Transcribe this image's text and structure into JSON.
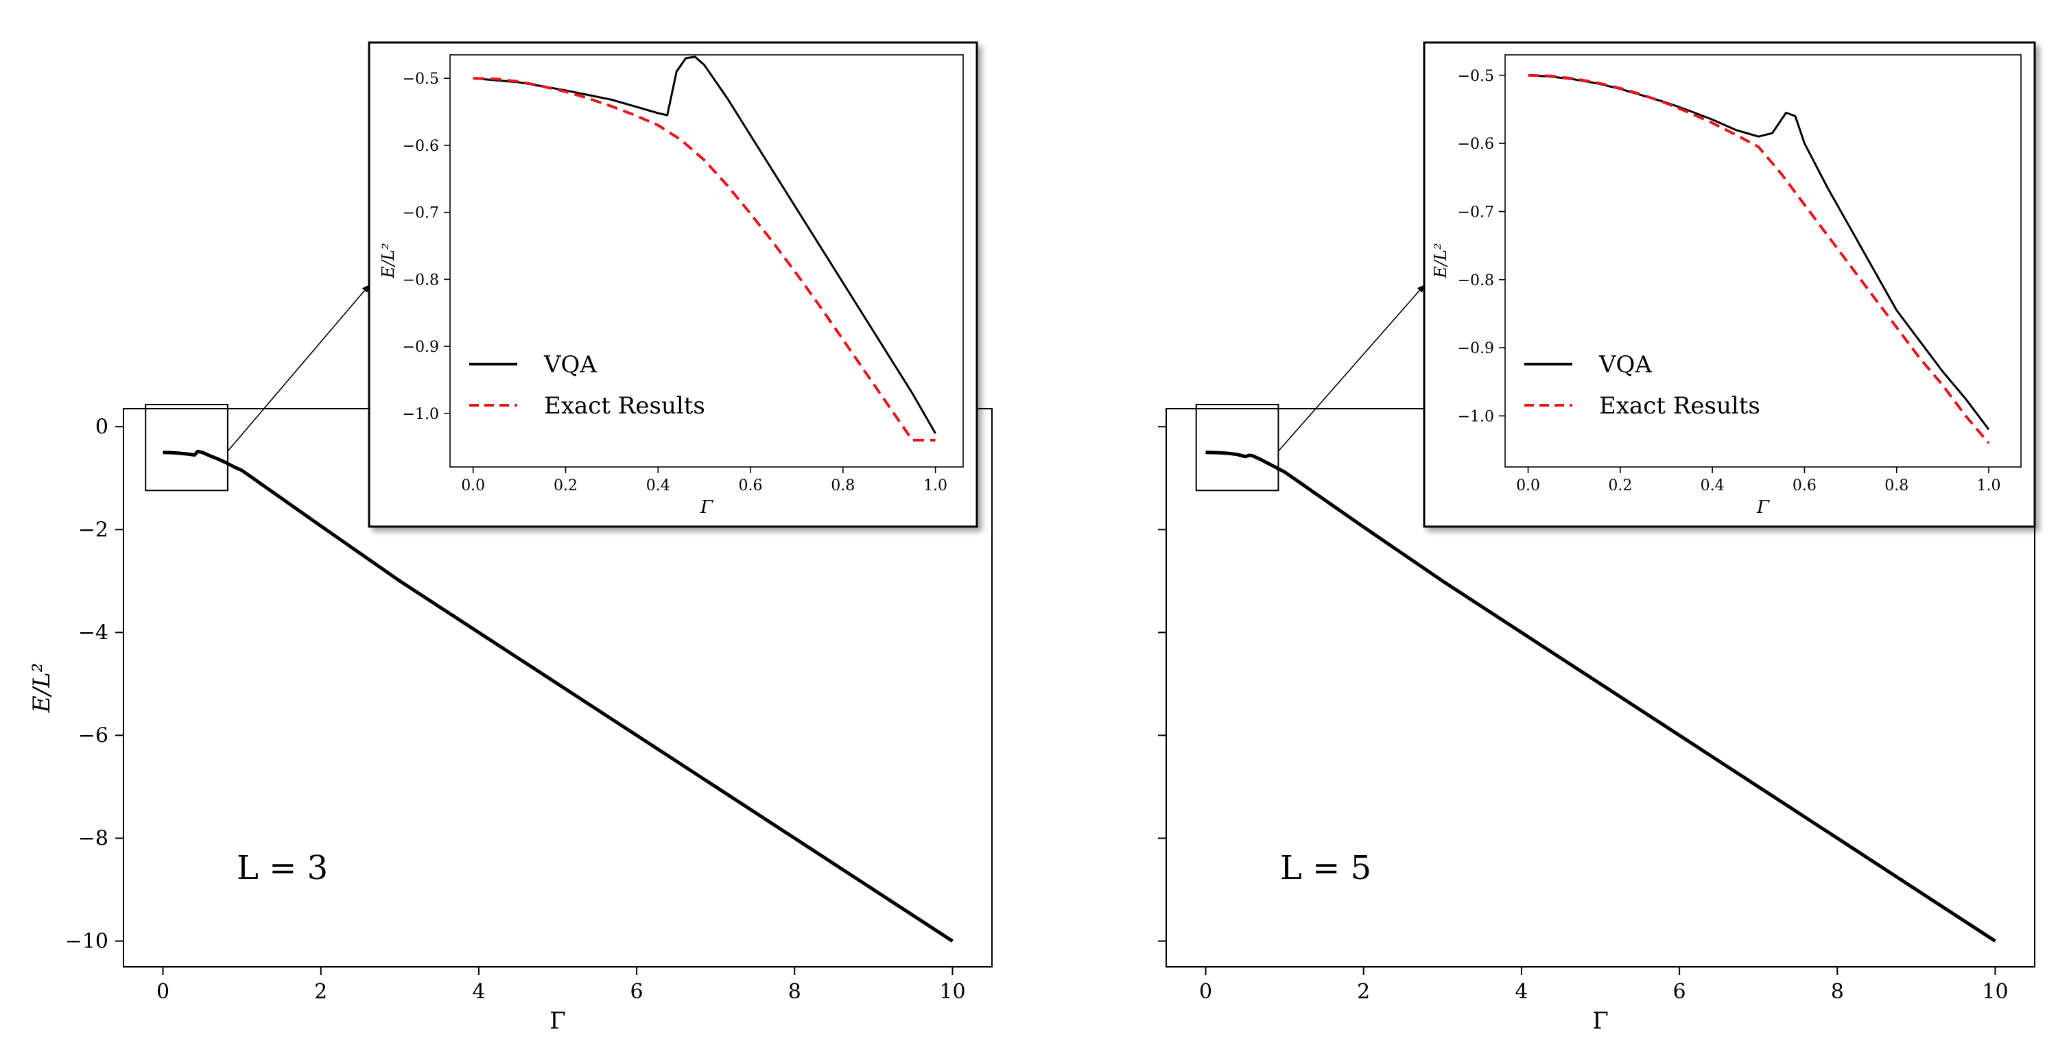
{
  "chart_data": [
    {
      "type": "line",
      "annotation": "L = 3",
      "xlabel": "Γ",
      "ylabel": "E/L²",
      "xlim": [
        -0.5,
        10.5
      ],
      "ylim": [
        -10.5,
        0.35
      ],
      "xticks": [
        0,
        2,
        4,
        6,
        8,
        10
      ],
      "xtick_labels": [
        "0",
        "2",
        "4",
        "6",
        "8",
        "10"
      ],
      "yticks": [
        0,
        -2,
        -4,
        -6,
        -8,
        -10
      ],
      "ytick_labels": [
        "0",
        "−2",
        "−4",
        "−6",
        "−8",
        "−10"
      ],
      "grid": false,
      "zoom_box": {
        "x": [
          -0.22,
          0.82
        ],
        "y": [
          -1.24,
          0.43
        ]
      },
      "series": [
        {
          "name": "VQA",
          "style": "solid",
          "color": "#000000",
          "x": [
            0,
            0.1,
            0.2,
            0.3,
            0.4,
            0.44,
            0.5,
            0.6,
            0.7,
            0.8,
            0.9,
            1.0,
            2,
            3,
            4,
            5,
            6,
            7,
            8,
            9,
            10
          ],
          "y": [
            -0.5,
            -0.505,
            -0.515,
            -0.53,
            -0.55,
            -0.48,
            -0.5,
            -0.57,
            -0.63,
            -0.7,
            -0.78,
            -0.85,
            -1.93,
            -3.0,
            -4.0,
            -5.0,
            -6.0,
            -7.0,
            -8.0,
            -9.0,
            -10.0
          ]
        }
      ],
      "inset": {
        "xlabel": "Γ",
        "ylabel": "E/L²",
        "xlim": [
          -0.05,
          1.06
        ],
        "ylim": [
          -1.08,
          -0.465
        ],
        "xticks": [
          0.0,
          0.2,
          0.4,
          0.6,
          0.8,
          1.0
        ],
        "xtick_labels": [
          "0.0",
          "0.2",
          "0.4",
          "0.6",
          "0.8",
          "1.0"
        ],
        "yticks": [
          -0.5,
          -0.6,
          -0.7,
          -0.8,
          -0.9,
          -1.0
        ],
        "ytick_labels": [
          "−0.5",
          "−0.6",
          "−0.7",
          "−0.8",
          "−0.9",
          "−1.0"
        ],
        "legend": {
          "placement": "lower-left",
          "entries": [
            "VQA",
            "Exact Results"
          ]
        },
        "series": [
          {
            "name": "VQA",
            "style": "solid",
            "color": "#000000",
            "x": [
              0.0,
              0.05,
              0.1,
              0.15,
              0.2,
              0.25,
              0.3,
              0.35,
              0.4,
              0.42,
              0.44,
              0.46,
              0.48,
              0.5,
              0.55,
              0.6,
              0.65,
              0.7,
              0.75,
              0.8,
              0.85,
              0.9,
              0.95,
              1.0
            ],
            "y": [
              -0.5,
              -0.503,
              -0.506,
              -0.512,
              -0.518,
              -0.525,
              -0.532,
              -0.542,
              -0.552,
              -0.555,
              -0.49,
              -0.47,
              -0.468,
              -0.48,
              -0.53,
              -0.585,
              -0.64,
              -0.695,
              -0.75,
              -0.805,
              -0.86,
              -0.915,
              -0.97,
              -1.03
            ]
          },
          {
            "name": "Exact Results",
            "style": "dashed",
            "color": "#e8141b",
            "x": [
              0.0,
              0.05,
              0.1,
              0.15,
              0.2,
              0.25,
              0.3,
              0.35,
              0.4,
              0.45,
              0.5,
              0.55,
              0.6,
              0.65,
              0.7,
              0.75,
              0.8,
              0.85,
              0.9,
              0.95,
              1.0
            ],
            "y": [
              -0.5,
              -0.501,
              -0.505,
              -0.512,
              -0.52,
              -0.53,
              -0.542,
              -0.555,
              -0.57,
              -0.592,
              -0.622,
              -0.66,
              -0.702,
              -0.746,
              -0.792,
              -0.84,
              -0.89,
              -0.94,
              -0.99,
              -1.04,
              -1.04
            ]
          }
        ]
      }
    },
    {
      "type": "line",
      "annotation": "L = 5",
      "xlabel": "Γ",
      "ylabel": "",
      "xlim": [
        -0.5,
        10.5
      ],
      "ylim": [
        -10.5,
        0.35
      ],
      "xticks": [
        0,
        2,
        4,
        6,
        8,
        10
      ],
      "xtick_labels": [
        "0",
        "2",
        "4",
        "6",
        "8",
        "10"
      ],
      "yticks": [
        0,
        -2,
        -4,
        -6,
        -8,
        -10
      ],
      "ytick_labels": [],
      "grid": false,
      "zoom_box": {
        "x": [
          -0.12,
          0.92
        ],
        "y": [
          -1.24,
          0.43
        ]
      },
      "series": [
        {
          "name": "VQA",
          "style": "solid",
          "color": "#000000",
          "x": [
            0,
            0.1,
            0.2,
            0.3,
            0.4,
            0.5,
            0.56,
            0.6,
            0.7,
            0.8,
            0.9,
            1.0,
            2,
            3,
            4,
            5,
            6,
            7,
            8,
            9,
            10
          ],
          "y": [
            -0.5,
            -0.503,
            -0.51,
            -0.52,
            -0.54,
            -0.58,
            -0.555,
            -0.57,
            -0.64,
            -0.72,
            -0.8,
            -0.88,
            -1.95,
            -3.0,
            -4.0,
            -5.0,
            -6.0,
            -7.0,
            -8.0,
            -9.0,
            -10.0
          ]
        }
      ],
      "inset": {
        "xlabel": "Γ",
        "ylabel": "E/L²",
        "xlim": [
          -0.05,
          1.07
        ],
        "ylim": [
          -1.075,
          -0.47
        ],
        "xticks": [
          0.0,
          0.2,
          0.4,
          0.6,
          0.8,
          1.0
        ],
        "xtick_labels": [
          "0.0",
          "0.2",
          "0.4",
          "0.6",
          "0.8",
          "1.0"
        ],
        "yticks": [
          -0.5,
          -0.6,
          -0.7,
          -0.8,
          -0.9,
          -1.0
        ],
        "ytick_labels": [
          "−0.5",
          "−0.6",
          "−0.7",
          "−0.8",
          "−0.9",
          "−1.0"
        ],
        "legend": {
          "placement": "lower-left",
          "entries": [
            "VQA",
            "Exact Results"
          ]
        },
        "series": [
          {
            "name": "VQA",
            "style": "solid",
            "color": "#000000",
            "x": [
              0.0,
              0.05,
              0.1,
              0.15,
              0.2,
              0.25,
              0.3,
              0.35,
              0.4,
              0.45,
              0.5,
              0.53,
              0.56,
              0.58,
              0.6,
              0.65,
              0.7,
              0.75,
              0.8,
              0.85,
              0.9,
              0.95,
              1.0
            ],
            "y": [
              -0.5,
              -0.502,
              -0.506,
              -0.512,
              -0.52,
              -0.53,
              -0.54,
              -0.552,
              -0.565,
              -0.58,
              -0.59,
              -0.585,
              -0.555,
              -0.56,
              -0.6,
              -0.665,
              -0.725,
              -0.785,
              -0.845,
              -0.89,
              -0.935,
              -0.975,
              -1.02
            ]
          },
          {
            "name": "Exact Results",
            "style": "dashed",
            "color": "#e8141b",
            "x": [
              0.0,
              0.05,
              0.1,
              0.15,
              0.2,
              0.25,
              0.3,
              0.35,
              0.4,
              0.45,
              0.5,
              0.55,
              0.6,
              0.65,
              0.7,
              0.75,
              0.8,
              0.85,
              0.9,
              0.95,
              1.0
            ],
            "y": [
              -0.5,
              -0.501,
              -0.505,
              -0.511,
              -0.519,
              -0.529,
              -0.541,
              -0.555,
              -0.57,
              -0.587,
              -0.605,
              -0.645,
              -0.69,
              -0.735,
              -0.78,
              -0.825,
              -0.87,
              -0.915,
              -0.955,
              -1.0,
              -1.04
            ]
          }
        ]
      }
    }
  ]
}
